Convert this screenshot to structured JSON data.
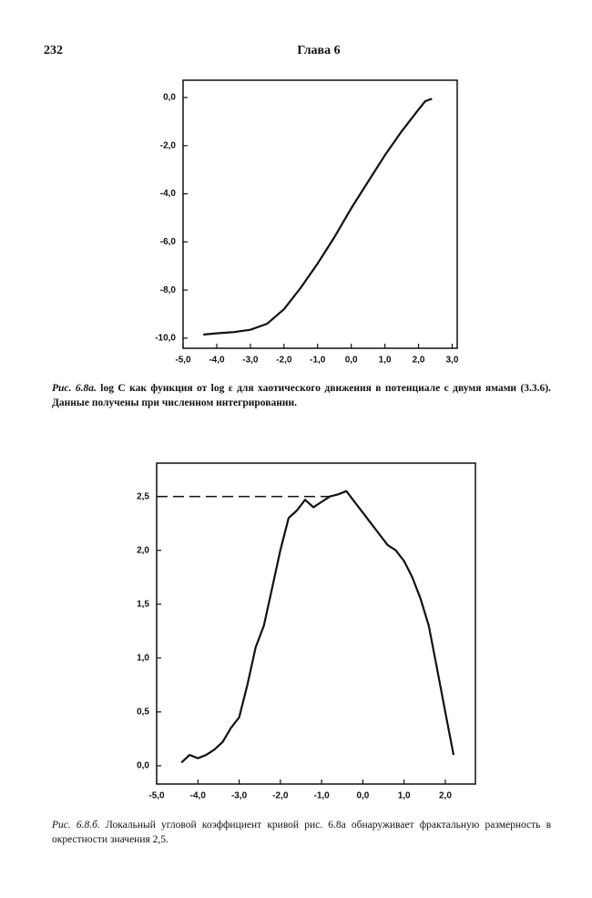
{
  "page_number": "232",
  "header": "Глава 6",
  "chart_data": [
    {
      "type": "line",
      "caption_label": "Рис. 6.8а.",
      "caption": "log C как функция от log ε для хаотического движения в потенциале с двумя ямами (3.3.6). Данные получены при численном интегрировании.",
      "x": [
        -4.4,
        -4.0,
        -3.5,
        -3.0,
        -2.5,
        -2.0,
        -1.5,
        -1.0,
        -0.5,
        0.0,
        0.5,
        1.0,
        1.5,
        2.0,
        2.2,
        2.4
      ],
      "values": [
        -9.85,
        -9.8,
        -9.75,
        -9.65,
        -9.4,
        -8.8,
        -7.9,
        -6.9,
        -5.8,
        -4.6,
        -3.5,
        -2.4,
        -1.4,
        -0.5,
        -0.15,
        -0.05
      ],
      "color": "#111111",
      "xlim": [
        -5.0,
        3.15
      ],
      "ylim": [
        -10.42,
        0.72
      ],
      "xticks": [
        {
          "value": -5,
          "label": "-5,0"
        },
        {
          "value": -4,
          "label": "-4,0"
        },
        {
          "value": -3,
          "label": "-3,0"
        },
        {
          "value": -2,
          "label": "-2,0"
        },
        {
          "value": -1,
          "label": "-1,0"
        },
        {
          "value": 0,
          "label": "0,0"
        },
        {
          "value": 1,
          "label": "1,0"
        },
        {
          "value": 2,
          "label": "2,0"
        },
        {
          "value": 3,
          "label": "3,0"
        }
      ],
      "yticks": [
        {
          "value": 0,
          "label": "0,0"
        },
        {
          "value": -2,
          "label": "-2,0"
        },
        {
          "value": -4,
          "label": "-4,0"
        },
        {
          "value": -6,
          "label": "-6,0"
        },
        {
          "value": -8,
          "label": "-8,0"
        },
        {
          "value": -10,
          "label": "-10,0"
        }
      ],
      "caption_bold": true
    },
    {
      "type": "line",
      "caption_label": "Рис. 6.8.б.",
      "caption": "Локальный угловой коэффициент кривой рис. 6.8а обнаруживает фрактальную размерность в окрестности значения 2,5.",
      "x": [
        -4.4,
        -4.2,
        -4.0,
        -3.8,
        -3.6,
        -3.4,
        -3.2,
        -3.0,
        -2.8,
        -2.6,
        -2.4,
        -2.2,
        -2.0,
        -1.8,
        -1.6,
        -1.4,
        -1.2,
        -1.0,
        -0.8,
        -0.6,
        -0.4,
        -0.2,
        0.0,
        0.2,
        0.4,
        0.6,
        0.8,
        1.0,
        1.2,
        1.4,
        1.6,
        1.8,
        2.0,
        2.2
      ],
      "values": [
        0.03,
        0.1,
        0.07,
        0.1,
        0.15,
        0.22,
        0.35,
        0.45,
        0.75,
        1.1,
        1.3,
        1.65,
        2.0,
        2.3,
        2.37,
        2.47,
        2.4,
        2.45,
        2.5,
        2.52,
        2.55,
        2.45,
        2.35,
        2.25,
        2.15,
        2.05,
        2.0,
        1.9,
        1.75,
        1.55,
        1.3,
        0.9,
        0.5,
        0.1
      ],
      "color": "#111111",
      "hline": 2.5,
      "xlim": [
        -5.0,
        2.73
      ],
      "ylim": [
        -0.17,
        2.81
      ],
      "xticks": [
        {
          "value": -5,
          "label": "-5,0"
        },
        {
          "value": -4,
          "label": "-4,0"
        },
        {
          "value": -3,
          "label": "-3,0"
        },
        {
          "value": -2,
          "label": "-2,0"
        },
        {
          "value": -1,
          "label": "-1,0"
        },
        {
          "value": 0,
          "label": "0,0"
        },
        {
          "value": 1,
          "label": "1,0"
        },
        {
          "value": 2,
          "label": "2,0"
        }
      ],
      "yticks": [
        {
          "value": 0,
          "label": "0,0"
        },
        {
          "value": 0.5,
          "label": "0,5"
        },
        {
          "value": 1,
          "label": "1,0"
        },
        {
          "value": 1.5,
          "label": "1,5"
        },
        {
          "value": 2,
          "label": "2,0"
        },
        {
          "value": 2.5,
          "label": "2,5"
        }
      ],
      "caption_bold": false
    }
  ]
}
